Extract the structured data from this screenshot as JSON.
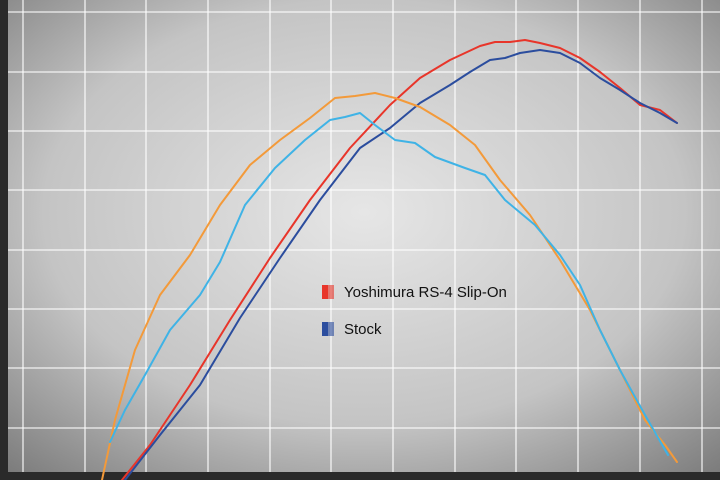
{
  "chart_data": {
    "type": "line",
    "xlim": [
      0,
      720
    ],
    "ylim": [
      0,
      480
    ],
    "xticks": [
      23,
      85,
      146,
      208,
      270,
      331,
      393,
      455,
      516,
      578,
      640,
      702
    ],
    "yticks": [
      52,
      112,
      171,
      230,
      290,
      349,
      408,
      468
    ],
    "grid": true,
    "series": [
      {
        "name": "Yoshimura RS-4 Slip-On",
        "color": "#e8352a",
        "x": [
          122,
          150,
          190,
          230,
          270,
          310,
          350,
          390,
          420,
          450,
          480,
          495,
          510,
          525,
          540,
          560,
          580,
          600,
          620,
          640,
          660,
          677
        ],
        "values": [
          0,
          35,
          95,
          160,
          222,
          280,
          332,
          375,
          402,
          420,
          434,
          438,
          438,
          440,
          437,
          432,
          422,
          408,
          392,
          375,
          370,
          357
        ]
      },
      {
        "name": "Stock",
        "color": "#2b4d9e",
        "x": [
          125,
          160,
          200,
          240,
          280,
          320,
          360,
          390,
          420,
          450,
          470,
          490,
          505,
          520,
          540,
          560,
          580,
          600,
          620,
          640,
          660,
          677
        ],
        "values": [
          0,
          45,
          95,
          162,
          222,
          280,
          332,
          352,
          377,
          395,
          408,
          420,
          422,
          427,
          430,
          427,
          417,
          402,
          390,
          377,
          367,
          357
        ]
      },
      {
        "color": "#f39a3a",
        "x": [
          102,
          115,
          135,
          160,
          190,
          220,
          250,
          280,
          310,
          335,
          355,
          375,
          395,
          420,
          450,
          475,
          500,
          530,
          560,
          590,
          620,
          645,
          665,
          677
        ],
        "values": [
          0,
          60,
          130,
          185,
          225,
          275,
          315,
          340,
          362,
          382,
          384,
          387,
          382,
          373,
          355,
          335,
          300,
          265,
          220,
          170,
          110,
          60,
          35,
          18
        ]
      },
      {
        "color": "#3fb3e6",
        "x": [
          110,
          125,
          145,
          170,
          200,
          220,
          245,
          275,
          305,
          330,
          345,
          360,
          375,
          395,
          415,
          435,
          465,
          485,
          505,
          535,
          560,
          580,
          600,
          620,
          645,
          668
        ],
        "values": [
          38,
          70,
          105,
          150,
          185,
          218,
          275,
          312,
          340,
          360,
          363,
          367,
          355,
          340,
          337,
          323,
          312,
          305,
          280,
          255,
          225,
          195,
          150,
          110,
          65,
          25
        ]
      }
    ]
  }
}
